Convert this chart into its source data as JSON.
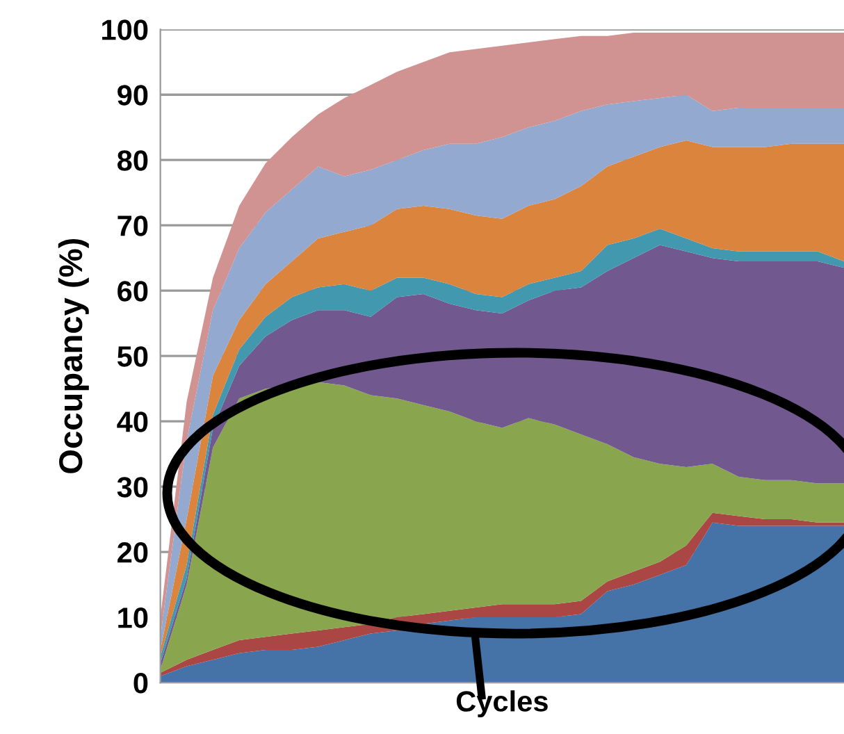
{
  "chart_data": {
    "type": "area",
    "stacked": true,
    "ylabel": "Occupancy (%)",
    "xlabel": "Cycles",
    "categories": [
      null,
      null,
      null,
      null,
      null,
      null,
      null,
      null,
      null,
      null,
      null,
      null,
      null,
      null,
      null,
      null,
      null,
      null,
      null,
      null,
      null,
      null,
      null,
      null,
      null,
      null,
      null
    ],
    "series": [
      {
        "color": "#4572a7",
        "values": [
          1,
          2.5,
          3.5,
          4.5,
          5,
          5,
          5.5,
          6.5,
          7.5,
          8,
          9,
          9.5,
          10,
          10,
          10,
          10,
          10.5,
          14,
          15,
          16.5,
          18,
          24.5,
          24,
          24,
          24,
          24,
          24
        ]
      },
      {
        "color": "#aa4643",
        "values": [
          0.5,
          1,
          1.5,
          2,
          2,
          2.5,
          2.5,
          2,
          1.5,
          2,
          1.5,
          1.5,
          1.5,
          2,
          2,
          2,
          2,
          1.5,
          2,
          2,
          3,
          1.5,
          1.5,
          1,
          1,
          0.5,
          0.5
        ]
      },
      {
        "color": "#89a54e",
        "values": [
          0.5,
          11.5,
          31,
          37,
          38,
          38,
          38,
          37,
          35,
          33.5,
          32,
          30.5,
          28.5,
          27,
          28.5,
          27.5,
          25.5,
          21,
          17.5,
          15,
          12,
          7.5,
          6,
          6,
          6,
          6,
          6
        ]
      },
      {
        "color": "#71588f",
        "values": [
          1,
          1,
          3,
          5,
          8,
          10,
          11,
          11.5,
          12,
          15.5,
          17,
          16.5,
          17,
          17.5,
          18,
          20.5,
          22.5,
          26.5,
          30.5,
          33.5,
          33,
          31.5,
          33,
          33.5,
          33.5,
          34,
          33
        ]
      },
      {
        "color": "#4198af",
        "values": [
          1,
          2,
          2,
          2.5,
          3,
          3.5,
          3.5,
          4,
          4,
          3,
          2.5,
          3,
          2.5,
          2.5,
          2.5,
          2,
          2.5,
          4,
          3,
          2.5,
          2,
          1.5,
          1.5,
          1.5,
          1.5,
          1.5,
          1
        ]
      },
      {
        "color": "#db843d",
        "values": [
          1,
          7,
          6,
          4.5,
          5,
          5.5,
          7.5,
          8,
          10,
          10.5,
          11,
          11.5,
          12,
          12,
          12,
          12,
          13,
          12,
          12.5,
          12.5,
          15,
          15.5,
          16,
          16,
          16.5,
          16.5,
          18
        ]
      },
      {
        "color": "#93a9cf",
        "values": [
          2,
          12,
          10,
          11,
          11,
          11,
          11,
          8.5,
          8.5,
          7.5,
          8.5,
          10,
          11,
          12.5,
          12,
          12,
          11.5,
          9.5,
          8.5,
          7.5,
          7,
          5.5,
          6,
          6,
          5.5,
          5.5,
          5.5
        ]
      },
      {
        "color": "#d19392",
        "values": [
          3,
          6,
          5,
          6.5,
          7.5,
          8,
          8,
          12,
          13,
          13.5,
          13.5,
          14,
          14.5,
          14,
          13,
          12.5,
          11.5,
          10.5,
          10.5,
          10,
          9.5,
          12,
          11.5,
          11.5,
          11.5,
          11.5,
          11.5
        ]
      }
    ],
    "ylim": [
      0,
      100
    ],
    "yticks": [
      0,
      10,
      20,
      30,
      40,
      50,
      60,
      70,
      80,
      90,
      100
    ],
    "grid": "y",
    "tick_labels": "y"
  }
}
